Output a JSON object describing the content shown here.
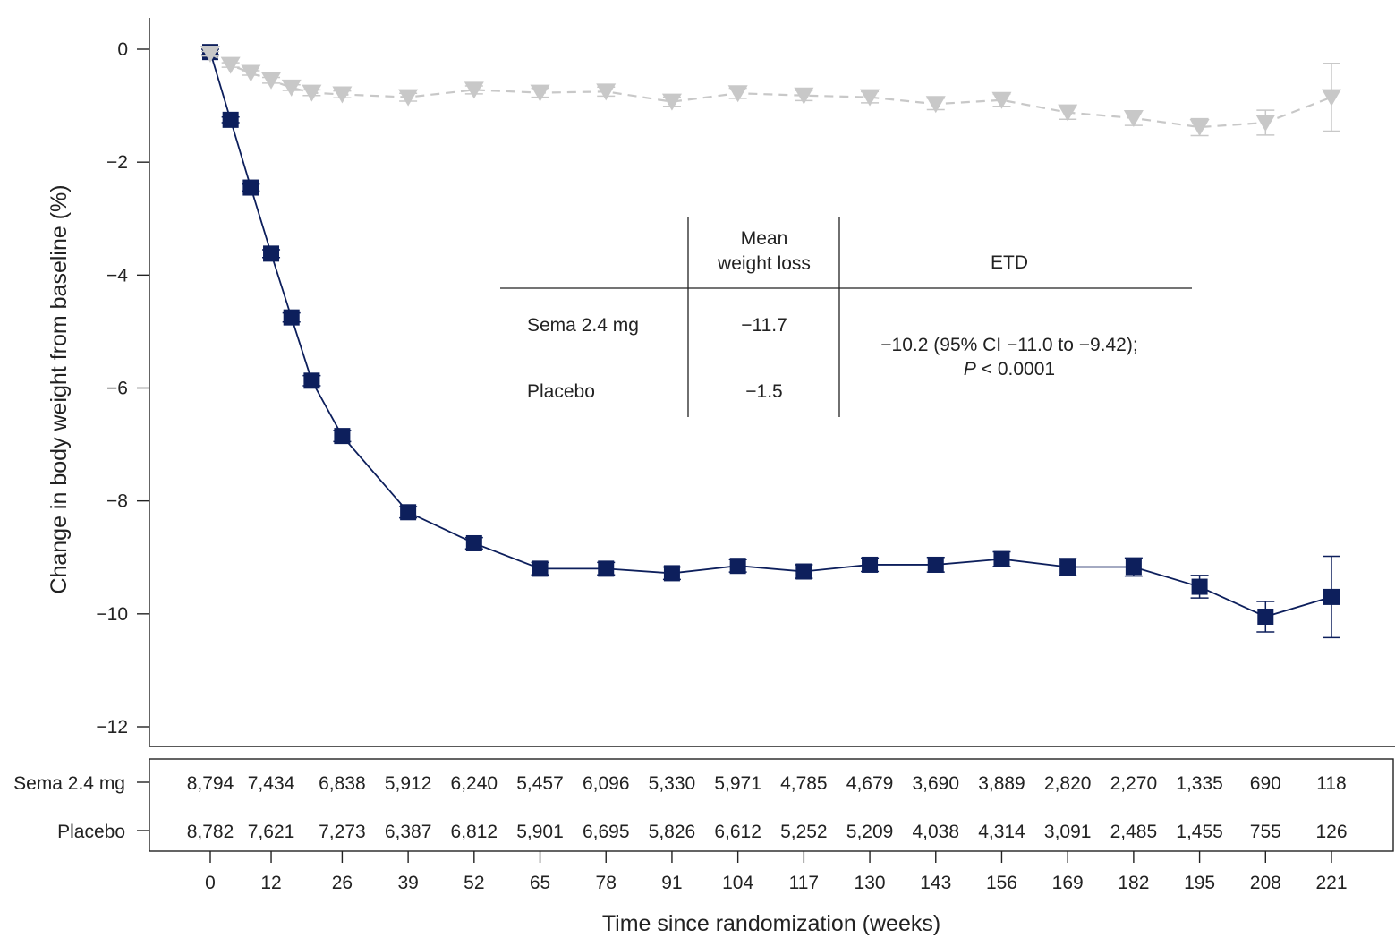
{
  "chart_data": {
    "type": "line",
    "xlabel": "Time since randomization (weeks)",
    "ylabel": "Change in body weight from baseline (%)",
    "x_ticks": [
      "0",
      "12",
      "26",
      "39",
      "52",
      "65",
      "78",
      "91",
      "104",
      "117",
      "130",
      "143",
      "156",
      "169",
      "182",
      "195",
      "208",
      "221"
    ],
    "y_ticks": [
      "0",
      "−2",
      "−4",
      "−6",
      "−8",
      "−10",
      "−12"
    ],
    "ylim": [
      -12.4,
      0.4
    ],
    "series": [
      {
        "name": "Sema 2.4 mg",
        "color": "#0d1f5c",
        "marker": "square",
        "line_style": "solid",
        "points": [
          {
            "x": 0,
            "y": -0.05,
            "err": 0.05
          },
          {
            "x": 4,
            "y": -1.25,
            "err": 0.05
          },
          {
            "x": 8,
            "y": -2.45,
            "err": 0.06
          },
          {
            "x": 12,
            "y": -3.62,
            "err": 0.07
          },
          {
            "x": 16,
            "y": -4.75,
            "err": 0.08
          },
          {
            "x": 20,
            "y": -5.87,
            "err": 0.09
          },
          {
            "x": 26,
            "y": -6.85,
            "err": 0.1
          },
          {
            "x": 39,
            "y": -8.2,
            "err": 0.1
          },
          {
            "x": 52,
            "y": -8.75,
            "err": 0.1
          },
          {
            "x": 65,
            "y": -9.2,
            "err": 0.11
          },
          {
            "x": 78,
            "y": -9.2,
            "err": 0.11
          },
          {
            "x": 91,
            "y": -9.28,
            "err": 0.11
          },
          {
            "x": 104,
            "y": -9.15,
            "err": 0.11
          },
          {
            "x": 117,
            "y": -9.25,
            "err": 0.12
          },
          {
            "x": 130,
            "y": -9.13,
            "err": 0.12
          },
          {
            "x": 143,
            "y": -9.13,
            "err": 0.13
          },
          {
            "x": 156,
            "y": -9.03,
            "err": 0.13
          },
          {
            "x": 169,
            "y": -9.17,
            "err": 0.15
          },
          {
            "x": 182,
            "y": -9.17,
            "err": 0.16
          },
          {
            "x": 195,
            "y": -9.52,
            "err": 0.2
          },
          {
            "x": 208,
            "y": -10.05,
            "err": 0.27
          },
          {
            "x": 221,
            "y": -9.7,
            "err": 0.72
          }
        ]
      },
      {
        "name": "Placebo",
        "color": "#c8c8c8",
        "marker": "triangle-down",
        "line_style": "dashed",
        "points": [
          {
            "x": 0,
            "y": -0.08,
            "err": 0.04
          },
          {
            "x": 4,
            "y": -0.28,
            "err": 0.04
          },
          {
            "x": 8,
            "y": -0.42,
            "err": 0.04
          },
          {
            "x": 12,
            "y": -0.55,
            "err": 0.05
          },
          {
            "x": 16,
            "y": -0.68,
            "err": 0.05
          },
          {
            "x": 20,
            "y": -0.77,
            "err": 0.05
          },
          {
            "x": 26,
            "y": -0.8,
            "err": 0.06
          },
          {
            "x": 39,
            "y": -0.85,
            "err": 0.07
          },
          {
            "x": 52,
            "y": -0.72,
            "err": 0.07
          },
          {
            "x": 65,
            "y": -0.77,
            "err": 0.08
          },
          {
            "x": 78,
            "y": -0.75,
            "err": 0.08
          },
          {
            "x": 91,
            "y": -0.93,
            "err": 0.08
          },
          {
            "x": 104,
            "y": -0.78,
            "err": 0.09
          },
          {
            "x": 117,
            "y": -0.82,
            "err": 0.09
          },
          {
            "x": 130,
            "y": -0.85,
            "err": 0.1
          },
          {
            "x": 143,
            "y": -0.97,
            "err": 0.1
          },
          {
            "x": 156,
            "y": -0.9,
            "err": 0.11
          },
          {
            "x": 169,
            "y": -1.12,
            "err": 0.12
          },
          {
            "x": 182,
            "y": -1.22,
            "err": 0.13
          },
          {
            "x": 195,
            "y": -1.38,
            "err": 0.15
          },
          {
            "x": 208,
            "y": -1.3,
            "err": 0.22
          },
          {
            "x": 221,
            "y": -0.85,
            "err": 0.6
          }
        ]
      }
    ],
    "inset_table": {
      "col_header_1": [
        "Mean",
        "weight loss"
      ],
      "col_header_2": "ETD",
      "rows": [
        {
          "label": "Sema 2.4 mg",
          "value": "−11.7"
        },
        {
          "label": "Placebo",
          "value": "−1.5"
        }
      ],
      "etd_line1": "−10.2 (95% CI −11.0 to −9.42);",
      "etd_p_symbol": "P",
      "etd_p_rest": " < 0.0001"
    },
    "at_risk": {
      "rows": [
        {
          "label": "Sema 2.4 mg",
          "values": [
            "8,794",
            "7,434",
            "6,838",
            "5,912",
            "6,240",
            "5,457",
            "6,096",
            "5,330",
            "5,971",
            "4,785",
            "4,679",
            "3,690",
            "3,889",
            "2,820",
            "2,270",
            "1,335",
            "690",
            "118"
          ]
        },
        {
          "label": "Placebo",
          "values": [
            "8,782",
            "7,621",
            "7,273",
            "6,387",
            "6,812",
            "5,901",
            "6,695",
            "5,826",
            "6,612",
            "5,252",
            "5,209",
            "4,038",
            "4,314",
            "3,091",
            "2,485",
            "1,455",
            "755",
            "126"
          ]
        }
      ]
    }
  }
}
